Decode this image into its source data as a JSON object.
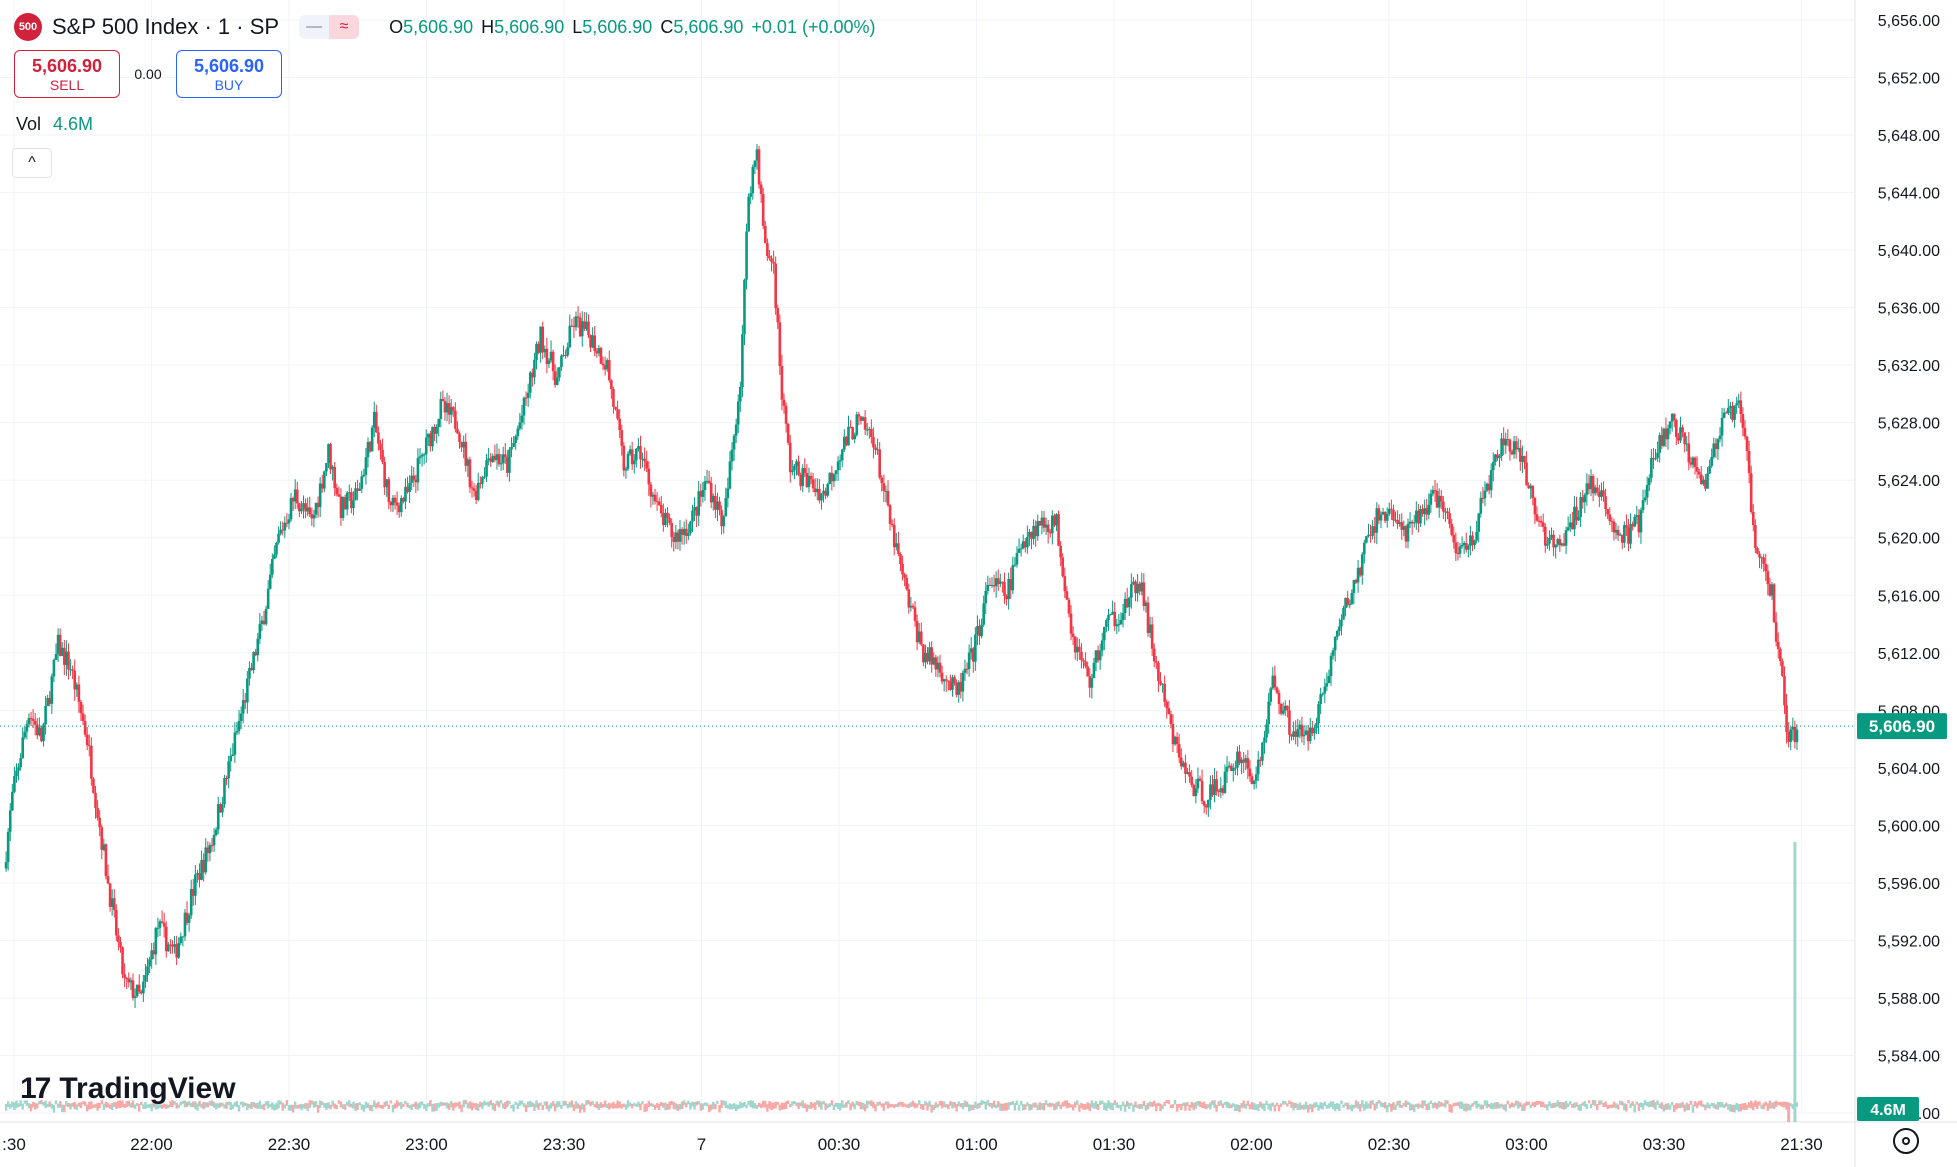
{
  "header": {
    "symbol_badge": "500",
    "title": "S&P 500 Index · 1 · SP",
    "ohlc": [
      {
        "key": "O",
        "value": "5,606.90"
      },
      {
        "key": "H",
        "value": "5,606.90"
      },
      {
        "key": "L",
        "value": "5,606.90"
      },
      {
        "key": "C",
        "value": "5,606.90"
      }
    ],
    "change": "+0.01 (+0.00%)",
    "minus_glyph": "—",
    "wave_glyph": "≈"
  },
  "trade": {
    "sell_price": "5,606.90",
    "sell_label": "SELL",
    "spread": "0.00",
    "buy_price": "5,606.90",
    "buy_label": "BUY"
  },
  "volume": {
    "label": "Vol",
    "value": "4.6M",
    "axis_badge": "4.6M"
  },
  "collapse_glyph": "^",
  "logo": {
    "icon": "17",
    "text": "TradingView"
  },
  "last_price_badge": "5,606.90",
  "colors": {
    "up": "#089981",
    "down": "#f23645",
    "grid": "#f0f3fa",
    "text": "#131722",
    "up_vol": "#9fd6ce",
    "down_vol": "#f7a9a7"
  },
  "icons": {
    "settings": "gear-icon",
    "collapse": "chevron-up-icon"
  },
  "chart_data": {
    "type": "candlestick",
    "title": "S&P 500 Index · 1 · SP",
    "y_axis": {
      "ticks": [
        "5,656.00",
        "5,652.00",
        "5,648.00",
        "5,644.00",
        "5,640.00",
        "5,636.00",
        "5,632.00",
        "5,628.00",
        "5,624.00",
        "5,620.00",
        "5,616.00",
        "5,612.00",
        "5,608.00",
        "5,604.00",
        "5,600.00",
        "5,596.00",
        "5,592.00",
        "5,588.00",
        "5,584.00",
        "5,580.00"
      ],
      "min": 5580,
      "max": 5656
    },
    "x_axis": {
      "ticks": [
        ":30",
        "22:00",
        "22:30",
        "23:00",
        "23:30",
        "7",
        "00:30",
        "01:00",
        "01:30",
        "02:00",
        "02:30",
        "03:00",
        "03:30",
        "21:30"
      ]
    },
    "last_price": 5606.9,
    "close_path": [
      [
        0,
        5597.0
      ],
      [
        4,
        5602.0
      ],
      [
        12,
        5608.0
      ],
      [
        18,
        5606.0
      ],
      [
        26,
        5612.5
      ],
      [
        32,
        5611.0
      ],
      [
        40,
        5606.0
      ],
      [
        50,
        5596.0
      ],
      [
        58,
        5589.0
      ],
      [
        66,
        5588.0
      ],
      [
        74,
        5593.0
      ],
      [
        82,
        5591.0
      ],
      [
        92,
        5596.0
      ],
      [
        100,
        5599.0
      ],
      [
        108,
        5604.0
      ],
      [
        116,
        5609.0
      ],
      [
        124,
        5614.0
      ],
      [
        132,
        5620.0
      ],
      [
        140,
        5623.0
      ],
      [
        148,
        5621.0
      ],
      [
        156,
        5626.0
      ],
      [
        162,
        5622.0
      ],
      [
        170,
        5623.0
      ],
      [
        178,
        5628.0
      ],
      [
        186,
        5622.0
      ],
      [
        194,
        5623.0
      ],
      [
        202,
        5626.0
      ],
      [
        210,
        5629.0
      ],
      [
        218,
        5628.0
      ],
      [
        226,
        5623.0
      ],
      [
        234,
        5626.0
      ],
      [
        242,
        5625.0
      ],
      [
        250,
        5629.0
      ],
      [
        258,
        5634.0
      ],
      [
        266,
        5631.0
      ],
      [
        274,
        5635.0
      ],
      [
        282,
        5634.0
      ],
      [
        290,
        5632.0
      ],
      [
        298,
        5625.0
      ],
      [
        306,
        5626.0
      ],
      [
        314,
        5622.0
      ],
      [
        322,
        5620.0
      ],
      [
        330,
        5621.0
      ],
      [
        338,
        5624.0
      ],
      [
        346,
        5621.0
      ],
      [
        354,
        5631.0
      ],
      [
        358,
        5644.0
      ],
      [
        362,
        5647.0
      ],
      [
        366,
        5640.0
      ],
      [
        370,
        5639.0
      ],
      [
        374,
        5630.0
      ],
      [
        378,
        5625.0
      ],
      [
        386,
        5624.0
      ],
      [
        394,
        5623.0
      ],
      [
        402,
        5626.0
      ],
      [
        410,
        5628.0
      ],
      [
        418,
        5627.0
      ],
      [
        426,
        5621.0
      ],
      [
        434,
        5616.0
      ],
      [
        442,
        5612.0
      ],
      [
        450,
        5611.0
      ],
      [
        458,
        5609.0
      ],
      [
        466,
        5612.0
      ],
      [
        474,
        5617.0
      ],
      [
        482,
        5616.0
      ],
      [
        490,
        5620.0
      ],
      [
        498,
        5621.0
      ],
      [
        506,
        5621.0
      ],
      [
        514,
        5613.0
      ],
      [
        522,
        5610.0
      ],
      [
        530,
        5614.0
      ],
      [
        538,
        5615.0
      ],
      [
        546,
        5617.0
      ],
      [
        554,
        5611.0
      ],
      [
        562,
        5606.0
      ],
      [
        570,
        5603.0
      ],
      [
        578,
        5602.0
      ],
      [
        586,
        5603.0
      ],
      [
        594,
        5605.0
      ],
      [
        602,
        5603.0
      ],
      [
        610,
        5610.0
      ],
      [
        618,
        5607.0
      ],
      [
        626,
        5606.0
      ],
      [
        634,
        5609.0
      ],
      [
        642,
        5614.0
      ],
      [
        650,
        5617.0
      ],
      [
        658,
        5621.0
      ],
      [
        666,
        5622.0
      ],
      [
        674,
        5620.0
      ],
      [
        682,
        5622.0
      ],
      [
        690,
        5623.0
      ],
      [
        698,
        5619.0
      ],
      [
        706,
        5620.0
      ],
      [
        714,
        5624.0
      ],
      [
        722,
        5627.0
      ],
      [
        730,
        5625.0
      ],
      [
        738,
        5621.0
      ],
      [
        746,
        5619.0
      ],
      [
        754,
        5621.0
      ],
      [
        762,
        5624.0
      ],
      [
        770,
        5622.0
      ],
      [
        778,
        5620.0
      ],
      [
        786,
        5621.0
      ],
      [
        794,
        5626.0
      ],
      [
        802,
        5628.0
      ],
      [
        810,
        5626.0
      ],
      [
        818,
        5624.0
      ],
      [
        826,
        5628.0
      ],
      [
        834,
        5629.0
      ],
      [
        838,
        5626.0
      ],
      [
        842,
        5619.0
      ],
      [
        846,
        5618.0
      ],
      [
        850,
        5616.0
      ],
      [
        854,
        5611.0
      ],
      [
        858,
        5606.0
      ],
      [
        862,
        5606.5
      ]
    ],
    "volume_spikes": [
      {
        "t": 858,
        "rel": 0.07,
        "dir": "down"
      },
      {
        "t": 861,
        "rel": 1.0,
        "dir": "up"
      }
    ]
  }
}
